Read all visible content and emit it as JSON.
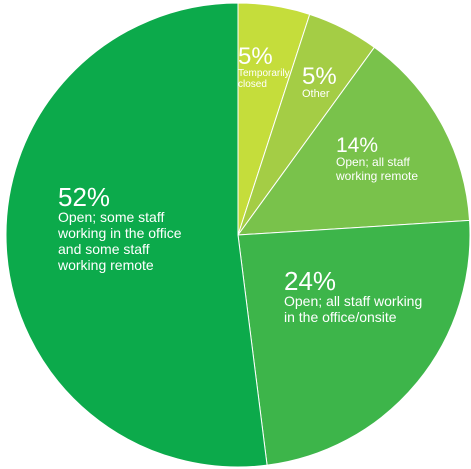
{
  "chart_data": {
    "type": "pie",
    "title": "",
    "slices": [
      {
        "value": 5,
        "pct_label": "5%",
        "label_lines": [
          "Temporarily",
          "closed"
        ],
        "color": "#c5dd3b"
      },
      {
        "value": 5,
        "pct_label": "5%",
        "label_lines": [
          "Other"
        ],
        "color": "#a4cd45"
      },
      {
        "value": 14,
        "pct_label": "14%",
        "label_lines": [
          "Open; all staff",
          "working remote"
        ],
        "color": "#79c24b"
      },
      {
        "value": 24,
        "pct_label": "24%",
        "label_lines": [
          "Open; all staff working",
          "in the office/onsite"
        ],
        "color": "#3db54a"
      },
      {
        "value": 52,
        "pct_label": "52%",
        "label_lines": [
          "Open; some staff",
          "working in the office",
          "and some staff",
          "working remote"
        ],
        "color": "#0caa4b"
      }
    ]
  }
}
